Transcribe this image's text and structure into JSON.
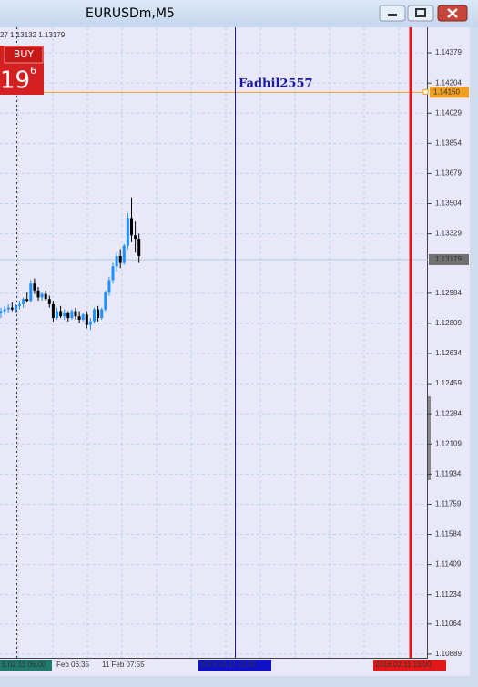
{
  "window": {
    "title": "EURUSDm,M5"
  },
  "info_text": "27 1.13132 1.13179",
  "buy_panel": {
    "button": "BUY",
    "price_big": "19",
    "price_small": "6"
  },
  "annotation": "Fadhil2557",
  "time_labels": [
    "5.02.11 06:00",
    "Feb 06:35",
    "11 Feb 07:55",
    "2016.02.11 11:00",
    "2016.02.11 15:00"
  ],
  "chart_data": {
    "type": "candlestick",
    "open": [
      1.1287,
      1.1288,
      1.1289,
      1.129,
      1.1289,
      1.1291,
      1.1292,
      1.1295,
      1.1294,
      1.1304,
      1.13,
      1.1296,
      1.1298,
      1.1295,
      1.1292,
      1.1284,
      1.1288,
      1.1285,
      1.1287,
      1.1284,
      1.1288,
      1.1285,
      1.1283,
      1.1286,
      1.128,
      1.1282,
      1.1289,
      1.1284,
      1.1289,
      1.1299,
      1.1306,
      1.1314,
      1.132,
      1.1316,
      1.1326,
      1.1342,
      1.1332,
      1.133
    ],
    "high": [
      1.129,
      1.1291,
      1.1292,
      1.1293,
      1.1292,
      1.1294,
      1.1296,
      1.1299,
      1.1306,
      1.1307,
      1.1302,
      1.1299,
      1.13,
      1.1297,
      1.1294,
      1.129,
      1.1291,
      1.1289,
      1.1288,
      1.1289,
      1.129,
      1.1288,
      1.1287,
      1.1288,
      1.1284,
      1.129,
      1.1291,
      1.129,
      1.13,
      1.1308,
      1.1316,
      1.1322,
      1.1324,
      1.1327,
      1.1345,
      1.1354,
      1.134,
      1.1333
    ],
    "low": [
      1.1284,
      1.1286,
      1.1287,
      1.1288,
      1.1287,
      1.1289,
      1.129,
      1.1293,
      1.1293,
      1.1298,
      1.1294,
      1.1294,
      1.1294,
      1.129,
      1.1282,
      1.1283,
      1.1284,
      1.1283,
      1.1282,
      1.1283,
      1.1283,
      1.1281,
      1.1282,
      1.1278,
      1.1277,
      1.1281,
      1.1282,
      1.1283,
      1.1288,
      1.1297,
      1.1304,
      1.1311,
      1.1313,
      1.1315,
      1.1324,
      1.1328,
      1.1322,
      1.1316
    ],
    "close": [
      1.1288,
      1.1289,
      1.129,
      1.1289,
      1.1291,
      1.1292,
      1.1295,
      1.1294,
      1.1304,
      1.13,
      1.1296,
      1.1298,
      1.1295,
      1.1292,
      1.1284,
      1.1288,
      1.1285,
      1.1287,
      1.1284,
      1.1288,
      1.1285,
      1.1283,
      1.1286,
      1.128,
      1.1282,
      1.1289,
      1.1284,
      1.1289,
      1.1299,
      1.1306,
      1.1314,
      1.132,
      1.1316,
      1.1326,
      1.1342,
      1.1332,
      1.133,
      1.132
    ],
    "up_color": "#1e90ff",
    "down_color": "#000000",
    "ylim": [
      1.10878,
      1.14517
    ],
    "yticks": [
      1.14379,
      1.14204,
      1.14029,
      1.13854,
      1.13679,
      1.13504,
      1.13329,
      1.12984,
      1.12809,
      1.12634,
      1.12459,
      1.12284,
      1.12109,
      1.11934,
      1.11759,
      1.11584,
      1.11409,
      1.11234,
      1.11064,
      1.10889
    ],
    "current_price": 1.13179,
    "level": 1.1415,
    "level_label": "1.14150",
    "grid": true
  }
}
